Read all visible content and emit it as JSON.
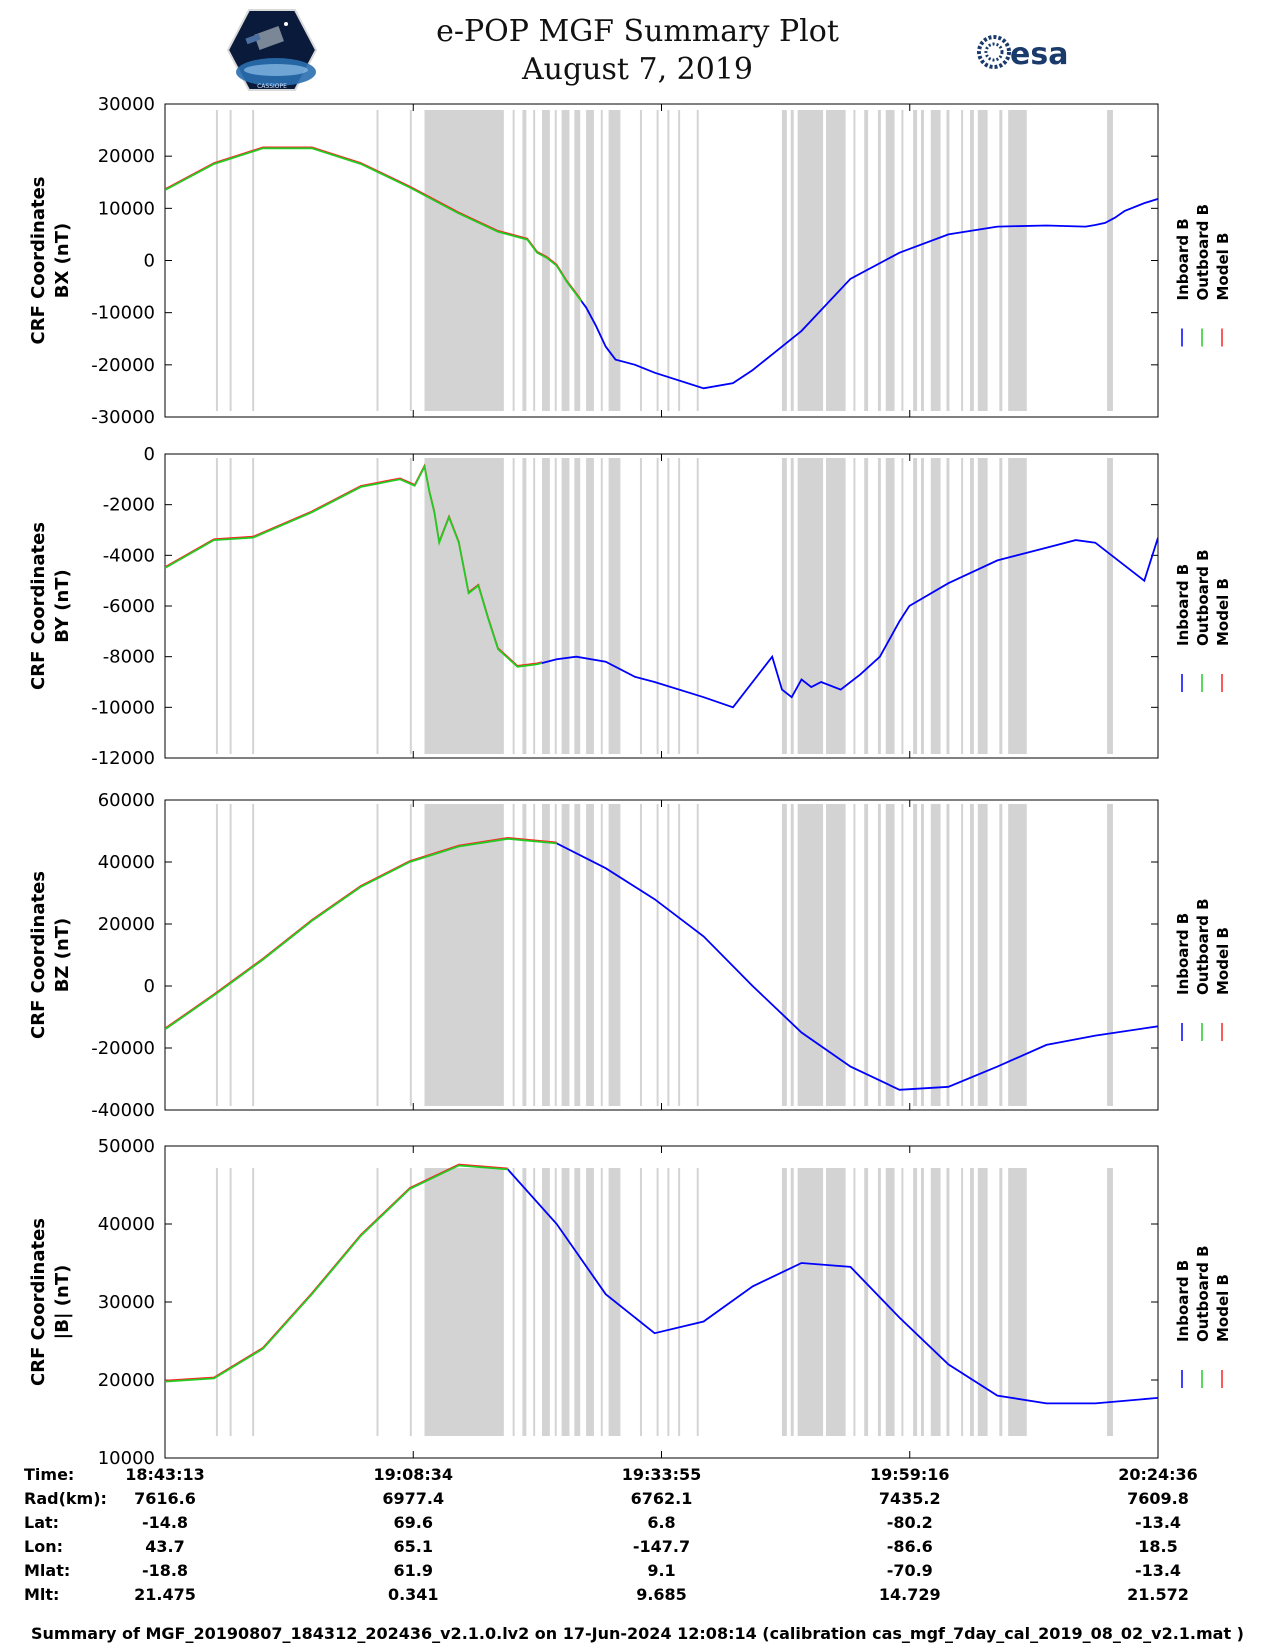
{
  "title_line1": "e-POP MGF Summary Plot",
  "title_line2": "August 7, 2019",
  "logo_right_text": "esa",
  "logo_left_caption": "CASSIOPE",
  "footer": "Summary of MGF_20190807_184312_202436_v2.1.0.lv2 on 17-Jun-2024 12:08:14 (calibration cas_mgf_7day_cal_2019_08_02_v2.1.mat )",
  "colors": {
    "inboard": "#0000ff",
    "outboard": "#22cc22",
    "model": "#ff2222",
    "shade": "#d3d3d3"
  },
  "chart_data": {
    "type": "line",
    "x_unit": "minutes since 18:43:13",
    "x_range": [
      0,
      101.4
    ],
    "legend": [
      "Inboard B",
      "Outboard B",
      "Model B"
    ],
    "panels": [
      {
        "id": "bx",
        "ylabel": [
          "CRF Coordinates",
          "BX (nT)"
        ],
        "ylim": [
          -30000,
          30000
        ],
        "yticks": [
          "30000",
          "20000",
          "10000",
          "0",
          "-10000",
          "-20000",
          "-30000"
        ],
        "x": [
          0,
          5,
          10,
          15,
          20,
          25,
          30,
          34,
          37,
          38,
          39,
          40,
          41,
          42,
          43,
          44,
          45,
          46,
          48,
          50,
          55,
          58,
          60,
          62,
          65,
          70,
          75,
          80,
          85,
          90,
          94,
          95,
          96,
          97,
          98,
          100,
          101.4
        ],
        "series": [
          {
            "name": "Inboard B",
            "switch_x": 42.5
          },
          {
            "name": "Outboard B"
          },
          {
            "name": "Model B"
          }
        ],
        "values": [
          13500,
          18500,
          21500,
          21500,
          18500,
          14000,
          9000,
          5500,
          4000,
          1500,
          500,
          -1000,
          -4000,
          -6500,
          -9000,
          -12500,
          -16500,
          -19000,
          -20000,
          -21500,
          -24500,
          -23500,
          -21000,
          -18000,
          -13500,
          -3500,
          1500,
          5000,
          6500,
          6700,
          6500,
          6800,
          7200,
          8200,
          9500,
          11000,
          11800
        ]
      },
      {
        "id": "by",
        "ylabel": [
          "CRF Coordinates",
          "BY (nT)"
        ],
        "ylim": [
          -12000,
          0
        ],
        "yticks": [
          "0",
          "-2000",
          "-4000",
          "-6000",
          "-8000",
          "-10000",
          "-12000"
        ],
        "x": [
          0,
          5,
          9,
          15,
          20,
          24,
          25.5,
          26.5,
          27,
          27.5,
          28,
          29,
          30,
          31,
          32,
          33,
          34,
          36,
          38,
          40,
          42,
          45,
          48,
          50,
          55,
          58,
          62,
          63,
          64,
          65,
          66,
          67,
          69,
          71,
          73,
          75,
          76,
          80,
          85,
          90,
          93,
          95,
          100,
          101.4
        ],
        "series": [
          {
            "name": "Inboard B",
            "switch_x": 38.5
          },
          {
            "name": "Outboard B"
          },
          {
            "name": "Model B"
          }
        ],
        "values": [
          -4500,
          -3400,
          -3300,
          -2300,
          -1300,
          -1000,
          -1250,
          -500,
          -1500,
          -2300,
          -3500,
          -2500,
          -3500,
          -5500,
          -5200,
          -6500,
          -7700,
          -8400,
          -8300,
          -8100,
          -8000,
          -8200,
          -8800,
          -9000,
          -9600,
          -10000,
          -8000,
          -9300,
          -9600,
          -8900,
          -9200,
          -9000,
          -9300,
          -8700,
          -8000,
          -6600,
          -6000,
          -5100,
          -4200,
          -3700,
          -3400,
          -3500,
          -5000,
          -3300
        ]
      },
      {
        "id": "bz",
        "ylabel": [
          "CRF Coordinates",
          "BZ (nT)"
        ],
        "ylim": [
          -40000,
          60000
        ],
        "yticks": [
          "60000",
          "40000",
          "20000",
          "0",
          "-20000",
          "-40000"
        ],
        "x": [
          0,
          5,
          10,
          15,
          20,
          25,
          30,
          35,
          40,
          45,
          50,
          55,
          60,
          65,
          70,
          75,
          80,
          85,
          90,
          95,
          101.4
        ],
        "series": [
          {
            "name": "Inboard B",
            "switch_x": 40
          },
          {
            "name": "Outboard B"
          },
          {
            "name": "Model B"
          }
        ],
        "values": [
          -14000,
          -3000,
          8500,
          21000,
          32000,
          40000,
          45000,
          47500,
          46000,
          38000,
          28000,
          16000,
          0,
          -15000,
          -26000,
          -33500,
          -32500,
          -26000,
          -19000,
          -16000,
          -13000
        ]
      },
      {
        "id": "bmag",
        "ylabel": [
          "CRF Coordinates",
          "|B| (nT)"
        ],
        "ylim": [
          10000,
          50000
        ],
        "yticks": [
          "50000",
          "40000",
          "30000",
          "20000",
          "10000"
        ],
        "x": [
          0,
          5,
          10,
          15,
          20,
          25,
          30,
          35,
          40,
          45,
          50,
          55,
          60,
          65,
          70,
          75,
          80,
          85,
          90,
          95,
          101.4
        ],
        "series": [
          {
            "name": "Inboard B",
            "switch_x": 35
          },
          {
            "name": "Outboard B"
          },
          {
            "name": "Model B"
          }
        ],
        "values": [
          19800,
          20200,
          24000,
          31000,
          38500,
          44500,
          47500,
          47000,
          40000,
          31000,
          26000,
          27500,
          32000,
          35000,
          34500,
          28000,
          22000,
          18000,
          17000,
          17000,
          17700
        ]
      }
    ],
    "shading_x": [
      [
        5.2,
        5.4
      ],
      [
        6.6,
        6.8
      ],
      [
        8.9,
        9.1
      ],
      [
        21.6,
        21.8
      ],
      [
        25,
        25.2
      ],
      [
        26.5,
        34.6
      ],
      [
        35.5,
        35.7
      ],
      [
        36.5,
        36.9
      ],
      [
        37.6,
        37.8
      ],
      [
        38.5,
        39.3
      ],
      [
        39.8,
        40.0
      ],
      [
        40.5,
        41.3
      ],
      [
        41.8,
        42.4
      ],
      [
        43,
        43.8
      ],
      [
        44.5,
        44.7
      ],
      [
        45.3,
        46.5
      ],
      [
        48.5,
        48.7
      ],
      [
        50.2,
        50.4
      ],
      [
        51.3,
        51.5
      ],
      [
        52.4,
        52.6
      ],
      [
        54.3,
        54.5
      ],
      [
        63,
        63.5
      ],
      [
        63.9,
        64.2
      ],
      [
        64.6,
        67.2
      ],
      [
        67.5,
        69.5
      ],
      [
        70.3,
        70.5
      ],
      [
        71.4,
        71.8
      ],
      [
        72.8,
        73.1
      ],
      [
        73.6,
        74.5
      ],
      [
        75.2,
        75.4
      ],
      [
        76.4,
        76.8
      ],
      [
        77.2,
        77.5
      ],
      [
        78.2,
        79.2
      ],
      [
        79.8,
        80.1
      ],
      [
        81.3,
        81.5
      ],
      [
        82.2,
        82.6
      ],
      [
        83,
        84
      ],
      [
        85.2,
        85.5
      ],
      [
        86.1,
        88
      ],
      [
        96.2,
        96.8
      ]
    ],
    "time_table": {
      "labels": [
        "Time:",
        "Rad(km):",
        "Lat:",
        "Lon:",
        "Mlat:",
        "Mlt:"
      ],
      "columns": [
        [
          "18:43:13",
          "7616.6",
          "-14.8",
          "43.7",
          "-18.8",
          "21.475"
        ],
        [
          "19:08:34",
          "6977.4",
          "69.6",
          "65.1",
          "61.9",
          "0.341"
        ],
        [
          "19:33:55",
          "6762.1",
          "6.8",
          "-147.7",
          "9.1",
          "9.685"
        ],
        [
          "19:59:16",
          "7435.2",
          "-80.2",
          "-86.6",
          "-70.9",
          "14.729"
        ],
        [
          "20:24:36",
          "7609.8",
          "-13.4",
          "18.5",
          "-13.4",
          "21.572"
        ]
      ]
    }
  }
}
